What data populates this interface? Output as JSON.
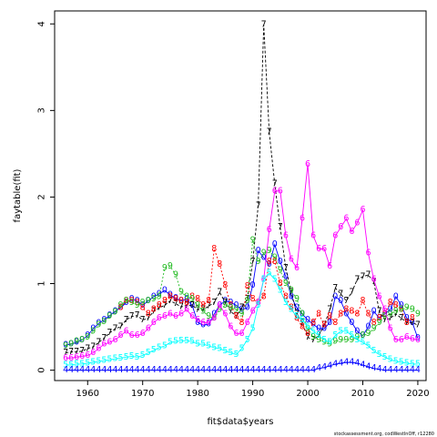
{
  "chart_data": {
    "type": "line",
    "xlabel": "fit$data$years",
    "ylabel": "faytable(fit)",
    "xlim": [
      1954.0,
      2021.5
    ],
    "ylim": [
      -0.12,
      4.15
    ],
    "x_ticks": [
      1960,
      1970,
      1980,
      1990,
      2000,
      2010,
      2020
    ],
    "y_ticks": [
      0,
      1,
      2,
      3,
      4
    ],
    "grid": false,
    "footnote": "stockassessment.org, codWestInOff, r12280",
    "series": [
      {
        "symbol": "0",
        "color": "#0000ff",
        "dash": "",
        "start_year": 1956,
        "values": [
          0.29,
          0.3,
          0.32,
          0.35,
          0.4,
          0.48,
          0.54,
          0.58,
          0.63,
          0.68,
          0.72,
          0.78,
          0.82,
          0.8,
          0.75,
          0.8,
          0.85,
          0.88,
          0.92,
          0.87,
          0.83,
          0.8,
          0.82,
          0.75,
          0.55,
          0.52,
          0.53,
          0.65,
          0.75,
          0.8,
          0.78,
          0.75,
          0.7,
          0.72,
          0.98,
          1.38,
          1.3,
          1.22,
          1.45,
          1.25,
          1.08,
          0.85,
          0.72,
          0.65,
          0.58,
          0.53,
          0.48,
          0.48,
          0.55,
          0.85,
          0.8,
          0.65,
          0.55,
          0.45,
          0.4,
          0.5,
          0.68,
          0.6,
          0.65,
          0.7,
          0.85,
          0.75,
          0.6,
          0.55,
          0.37
        ]
      },
      {
        "symbol": "7",
        "color": "#000000",
        "dash": "3,2",
        "start_year": 1956,
        "values": [
          0.2,
          0.21,
          0.21,
          0.22,
          0.25,
          0.27,
          0.32,
          0.37,
          0.43,
          0.48,
          0.5,
          0.58,
          0.62,
          0.63,
          0.58,
          0.6,
          0.68,
          0.72,
          0.75,
          0.8,
          0.77,
          0.73,
          0.75,
          0.75,
          0.7,
          0.7,
          0.74,
          0.78,
          0.9,
          0.78,
          0.68,
          0.62,
          0.72,
          0.82,
          1.25,
          1.9,
          3.99,
          2.75,
          2.15,
          1.65,
          1.18,
          0.9,
          0.65,
          0.55,
          0.38,
          0.35,
          0.4,
          0.52,
          0.7,
          0.95,
          0.88,
          0.8,
          0.9,
          1.05,
          1.08,
          1.1,
          1.02,
          0.68,
          0.58,
          0.6,
          0.65,
          0.6,
          0.55,
          0.55,
          0.52
        ]
      },
      {
        "symbol": "8",
        "color": "#ff0000",
        "dash": "2,2",
        "start_year": 1966,
        "values": [
          0.72,
          0.8,
          0.8,
          0.78,
          0.72,
          0.65,
          0.7,
          0.75,
          0.8,
          0.85,
          0.82,
          0.8,
          0.78,
          0.85,
          0.82,
          0.75,
          0.8,
          1.4,
          1.22,
          0.98,
          0.75,
          0.62,
          0.55,
          0.97,
          0.82,
          0.78,
          0.85,
          1.25,
          1.25,
          1.0,
          0.85,
          0.72,
          0.6,
          0.5,
          0.42,
          0.55,
          0.65,
          0.52,
          0.62,
          0.55,
          0.65,
          0.7,
          0.68,
          0.65,
          0.8,
          0.65,
          0.55,
          0.6,
          0.65,
          0.78,
          0.75,
          0.7,
          0.55,
          0.6
        ]
      },
      {
        "symbol": "9",
        "color": "#22bb22",
        "dash": "2,2",
        "start_year": 1956,
        "values": [
          0.28,
          0.3,
          0.33,
          0.35,
          0.38,
          0.45,
          0.52,
          0.56,
          0.62,
          0.67,
          0.75,
          0.8,
          0.78,
          0.75,
          0.78,
          0.8,
          0.82,
          0.85,
          1.18,
          1.2,
          1.1,
          0.9,
          0.85,
          0.82,
          0.75,
          0.68,
          0.62,
          0.6,
          0.7,
          0.75,
          0.72,
          0.7,
          0.65,
          0.8,
          1.5,
          1.25,
          1.35,
          1.38,
          1.3,
          1.15,
          1.0,
          0.92,
          0.82,
          0.65,
          0.48,
          0.38,
          0.35,
          0.32,
          0.3,
          0.33,
          0.35,
          0.35,
          0.35,
          0.38,
          0.4,
          0.42,
          0.48,
          0.55,
          0.62,
          0.65,
          0.68,
          0.7,
          0.72,
          0.7,
          0.65
        ]
      },
      {
        "symbol": "6",
        "color": "#ff00ff",
        "dash": "",
        "start_year": 1956,
        "values": [
          0.14,
          0.14,
          0.15,
          0.16,
          0.17,
          0.2,
          0.25,
          0.3,
          0.32,
          0.35,
          0.4,
          0.45,
          0.4,
          0.4,
          0.42,
          0.48,
          0.55,
          0.6,
          0.62,
          0.65,
          0.62,
          0.65,
          0.7,
          0.62,
          0.58,
          0.55,
          0.55,
          0.6,
          0.75,
          0.65,
          0.5,
          0.42,
          0.42,
          0.55,
          0.68,
          0.78,
          1.05,
          1.62,
          2.07,
          2.07,
          1.55,
          1.28,
          1.18,
          1.75,
          2.38,
          1.55,
          1.4,
          1.4,
          1.2,
          1.55,
          1.65,
          1.75,
          1.6,
          1.7,
          1.85,
          1.35,
          1.05,
          0.85,
          0.7,
          0.48,
          0.35,
          0.35,
          0.38,
          0.36,
          0.35
        ]
      },
      {
        "symbol": "5",
        "color": "#00ffff",
        "dash": "",
        "start_year": 1956,
        "values": [
          0.06,
          0.06,
          0.07,
          0.07,
          0.08,
          0.09,
          0.1,
          0.11,
          0.12,
          0.13,
          0.14,
          0.15,
          0.16,
          0.15,
          0.17,
          0.2,
          0.23,
          0.26,
          0.28,
          0.32,
          0.33,
          0.34,
          0.34,
          0.33,
          0.3,
          0.3,
          0.28,
          0.26,
          0.25,
          0.22,
          0.2,
          0.18,
          0.25,
          0.35,
          0.48,
          0.75,
          1.05,
          1.12,
          1.05,
          0.92,
          0.78,
          0.7,
          0.62,
          0.58,
          0.5,
          0.45,
          0.4,
          0.35,
          0.32,
          0.4,
          0.45,
          0.45,
          0.4,
          0.35,
          0.32,
          0.28,
          0.22,
          0.18,
          0.15,
          0.12,
          0.1,
          0.09,
          0.08,
          0.07,
          0.07
        ]
      },
      {
        "symbol": "4",
        "color": "#0000ff",
        "dash": "",
        "start_year": 1956,
        "values": [
          0.0,
          0.0,
          0.0,
          0.0,
          0.0,
          0.0,
          0.0,
          0.0,
          0.0,
          0.0,
          0.0,
          0.0,
          0.0,
          0.0,
          0.0,
          0.0,
          0.0,
          0.0,
          0.0,
          0.0,
          0.0,
          0.0,
          0.0,
          0.0,
          0.0,
          0.0,
          0.0,
          0.0,
          0.0,
          0.0,
          0.0,
          0.0,
          0.0,
          0.0,
          0.0,
          0.0,
          0.0,
          0.0,
          0.0,
          0.0,
          0.0,
          0.0,
          0.0,
          0.0,
          0.0,
          0.0,
          0.02,
          0.03,
          0.05,
          0.07,
          0.08,
          0.09,
          0.09,
          0.08,
          0.06,
          0.04,
          0.02,
          0.01,
          0.0,
          0.0,
          0.0,
          0.0,
          0.0,
          0.0,
          0.0
        ]
      }
    ]
  }
}
